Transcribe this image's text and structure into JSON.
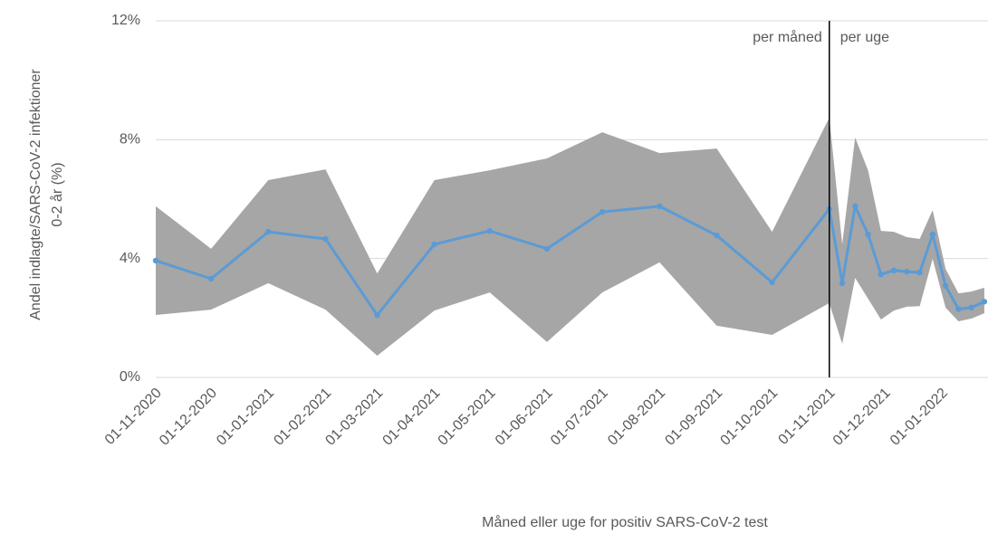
{
  "chart_data": {
    "type": "line",
    "y_label": [
      "Andel indlagte/SARS-CoV-2 infektioner",
      "0-2 år (%)"
    ],
    "x_label": "Måned eller uge for positiv SARS-CoV-2 test",
    "x": [
      "01-11-2020",
      "01-12-2020",
      "01-01-2021",
      "01-02-2021",
      "01-03-2021",
      "01-04-2021",
      "01-05-2021",
      "01-06-2021",
      "01-07-2021",
      "01-08-2021",
      "01-09-2021",
      "01-10-2021",
      "01-11-2021",
      "08-11-2021",
      "15-11-2021",
      "22-11-2021",
      "29-11-2021",
      "06-12-2021",
      "13-12-2021",
      "20-12-2021",
      "27-12-2021",
      "03-01-2022",
      "10-01-2022",
      "17-01-2022",
      "24-01-2022"
    ],
    "series": [
      {
        "color": "#5b9bd5",
        "values": [
          3.93,
          3.32,
          4.9,
          4.66,
          2.1,
          4.48,
          4.93,
          4.33,
          5.57,
          5.76,
          4.78,
          3.2,
          5.67,
          3.17,
          5.76,
          4.81,
          3.47,
          3.6,
          3.56,
          3.53,
          4.81,
          3.08,
          2.3,
          2.35,
          2.55
        ]
      }
    ],
    "band": {
      "color": "#a6a6a6",
      "upper": [
        5.76,
        4.33,
        6.64,
        7.0,
        3.5,
        6.64,
        6.97,
        7.37,
        8.25,
        7.55,
        7.7,
        4.9,
        8.74,
        4.48,
        8.07,
        6.97,
        4.93,
        4.9,
        4.72,
        4.66,
        5.63,
        3.65,
        2.83,
        2.89,
        3.02
      ],
      "lower": [
        2.1,
        2.28,
        3.17,
        2.28,
        0.73,
        2.25,
        2.86,
        1.19,
        2.86,
        3.87,
        1.74,
        1.43,
        2.5,
        1.13,
        3.35,
        2.65,
        1.95,
        2.25,
        2.38,
        2.4,
        3.99,
        2.35,
        1.89,
        1.98,
        2.16
      ]
    },
    "xlim": [
      "01-11-2020",
      "26-01-2022"
    ],
    "xticks": [
      "01-11-2020",
      "01-12-2020",
      "01-01-2021",
      "01-02-2021",
      "01-03-2021",
      "01-04-2021",
      "01-05-2021",
      "01-06-2021",
      "01-07-2021",
      "01-08-2021",
      "01-09-2021",
      "01-10-2021",
      "01-11-2021",
      "01-12-2021",
      "01-01-2022"
    ],
    "ylim": [
      0,
      12
    ],
    "yticks": [
      {
        "value": 0,
        "label": "0%"
      },
      {
        "value": 4,
        "label": "4%"
      },
      {
        "value": 8,
        "label": "8%"
      },
      {
        "value": 12,
        "label": "12%"
      }
    ],
    "grid": true,
    "divider": {
      "x": "01-11-2021",
      "left_label": "per måned",
      "right_label": "per uge"
    }
  }
}
